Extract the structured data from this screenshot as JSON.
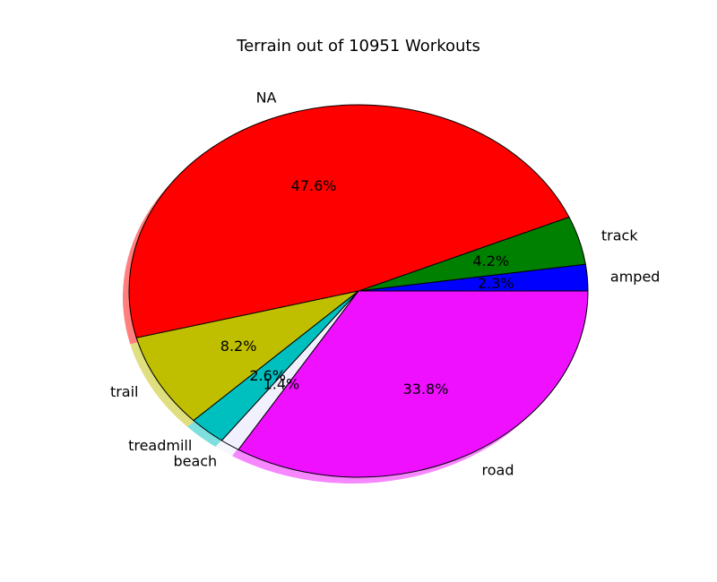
{
  "chart_data": {
    "type": "pie",
    "title": "Terrain out of 10951 Workouts",
    "slices": [
      {
        "label": "amped",
        "value": 2.3,
        "pct_label": "2.3%",
        "color": "#0000ff"
      },
      {
        "label": "track",
        "value": 4.2,
        "pct_label": "4.2%",
        "color": "#008000"
      },
      {
        "label": "NA",
        "value": 47.6,
        "pct_label": "47.6%",
        "color": "#ff0000"
      },
      {
        "label": "trail",
        "value": 8.2,
        "pct_label": "8.2%",
        "color": "#bfbf00"
      },
      {
        "label": "treadmill",
        "value": 2.6,
        "pct_label": "2.6%",
        "color": "#00bfbf"
      },
      {
        "label": "beach",
        "value": 1.4,
        "pct_label": "1.4%",
        "color": "#f0f0ff"
      },
      {
        "label": "road",
        "value": 33.8,
        "pct_label": "33.8%",
        "color": "#ee10ff"
      }
    ],
    "start_angle_deg": 0,
    "direction": "counterclockwise",
    "shadow": true,
    "legend": "none"
  }
}
